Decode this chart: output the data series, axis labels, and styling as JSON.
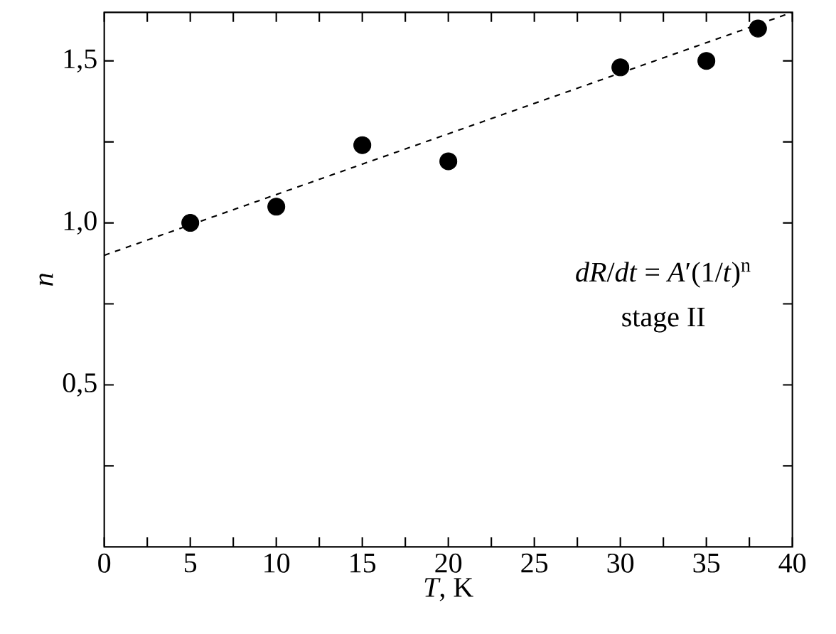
{
  "chart_data": {
    "type": "scatter",
    "xlabel": "*T*, K",
    "ylabel": "n",
    "xlim": [
      0,
      40
    ],
    "ylim": [
      0,
      1.65
    ],
    "xticks": [
      0,
      {
        "value": 2.5,
        "label": null
      },
      5,
      {
        "value": 7.5,
        "label": null
      },
      10,
      {
        "value": 12.5,
        "label": null
      },
      15,
      {
        "value": 17.5,
        "label": null
      },
      20,
      {
        "value": 22.5,
        "label": null
      },
      25,
      {
        "value": 27.5,
        "label": null
      },
      30,
      {
        "value": 32.5,
        "label": null
      },
      35,
      {
        "value": 37.5,
        "label": null
      },
      40
    ],
    "yticks": [
      {
        "value": 0.25,
        "label": null
      },
      {
        "value": 0.5,
        "label": "0,5"
      },
      {
        "value": 0.75,
        "label": null
      },
      {
        "value": 1.0,
        "label": "1,0"
      },
      {
        "value": 1.25,
        "label": null
      },
      {
        "value": 1.5,
        "label": "1,5"
      }
    ],
    "series": [
      {
        "marker": "circle",
        "color": "#000000",
        "x": [
          5,
          10,
          15,
          20,
          30,
          35,
          38
        ],
        "values": [
          1.0,
          1.05,
          1.24,
          1.19,
          1.48,
          1.5,
          1.6
        ]
      },
      {
        "type": "line",
        "line_style": "dashed",
        "marker": "none",
        "color": "#000000",
        "x": [
          0,
          40
        ],
        "values": [
          0.9,
          1.65
        ]
      }
    ],
    "annotations": [
      "*dR*/*dt* = *A*′(1/*t*)$^{n}$",
      "stage II"
    ]
  }
}
